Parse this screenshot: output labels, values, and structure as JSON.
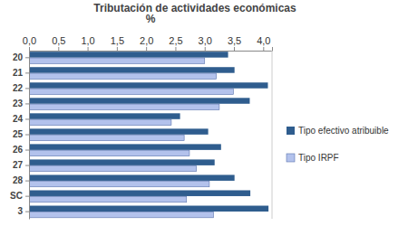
{
  "chart_data": {
    "type": "bar",
    "orientation": "horizontal",
    "title": "Tributación de actividades económicas",
    "x_label": "%",
    "categories": [
      "20",
      "21",
      "22",
      "23",
      "24",
      "25",
      "26",
      "27",
      "28",
      "SC",
      "3"
    ],
    "series": [
      {
        "name": "Tipo efectivo atribuible",
        "color": "#2f5d8e",
        "values": [
          3.4,
          3.51,
          4.08,
          3.77,
          2.58,
          3.06,
          3.28,
          3.17,
          3.51,
          3.78,
          4.09
        ]
      },
      {
        "name": "Tipo IRPF",
        "color": "#b3c2ec",
        "values": [
          3.0,
          3.2,
          3.49,
          3.25,
          2.43,
          2.65,
          2.74,
          2.86,
          3.08,
          2.69,
          3.15
        ]
      }
    ],
    "xlim": [
      0,
      4.15
    ],
    "xticks": [
      {
        "value": 0,
        "label": "0,0"
      },
      {
        "value": 0.5,
        "label": "0,5"
      },
      {
        "value": 1,
        "label": "1,0"
      },
      {
        "value": 1.5,
        "label": "1,5"
      },
      {
        "value": 2,
        "label": "2,0"
      },
      {
        "value": 2.5,
        "label": "2,5"
      },
      {
        "value": 3,
        "label": "3,0"
      },
      {
        "value": 3.5,
        "label": "3,5"
      },
      {
        "value": 4,
        "label": "4,0"
      }
    ],
    "grid": false,
    "legend": "right"
  }
}
